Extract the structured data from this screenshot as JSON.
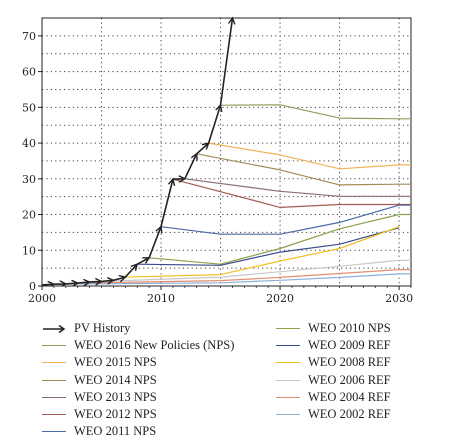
{
  "chart_data": {
    "type": "line",
    "title": "",
    "xlabel": "",
    "ylabel": "",
    "xlim": [
      2000,
      2031
    ],
    "ylim": [
      0,
      75
    ],
    "x_ticks": [
      "2000",
      "2010",
      "2020",
      "2030"
    ],
    "y_ticks": [
      "0",
      "10",
      "20",
      "30",
      "40",
      "50",
      "60",
      "70"
    ],
    "grid": "dotted",
    "legend_columns": 2,
    "series": [
      {
        "name": "PV History",
        "color": "#222222",
        "marker": "arrow",
        "points": [
          [
            2000,
            0.3
          ],
          [
            2001,
            0.5
          ],
          [
            2002,
            0.6
          ],
          [
            2003,
            0.8
          ],
          [
            2004,
            1.1
          ],
          [
            2005,
            1.3
          ],
          [
            2006,
            1.6
          ],
          [
            2007,
            2.5
          ],
          [
            2008,
            6.1
          ],
          [
            2009,
            7.9
          ],
          [
            2010,
            16.6
          ],
          [
            2011,
            29.9
          ],
          [
            2012,
            30.0
          ],
          [
            2013,
            37.0
          ],
          [
            2014,
            40.0
          ],
          [
            2015,
            50.6
          ],
          [
            2016,
            75.0
          ]
        ]
      },
      {
        "name": "WEO 2016 New Policies (NPS)",
        "color": "#9a9a5c",
        "points": [
          [
            2015,
            50.6
          ],
          [
            2020,
            50.7
          ],
          [
            2025,
            47.0
          ],
          [
            2030,
            46.8
          ],
          [
            2031,
            46.8
          ]
        ]
      },
      {
        "name": "WEO 2015 NPS",
        "color": "#f2b25a",
        "points": [
          [
            2014,
            40.0
          ],
          [
            2020,
            36.7
          ],
          [
            2025,
            32.8
          ],
          [
            2030,
            33.9
          ],
          [
            2031,
            33.9
          ]
        ]
      },
      {
        "name": "WEO 2014 NPS",
        "color": "#a68a5a",
        "points": [
          [
            2013,
            37.0
          ],
          [
            2020,
            32.5
          ],
          [
            2025,
            28.3
          ],
          [
            2030,
            28.5
          ],
          [
            2031,
            28.5
          ]
        ]
      },
      {
        "name": "WEO 2013 NPS",
        "color": "#8a7070",
        "points": [
          [
            2012,
            30.0
          ],
          [
            2020,
            26.5
          ],
          [
            2025,
            25.1
          ],
          [
            2030,
            25.1
          ],
          [
            2031,
            25.1
          ]
        ]
      },
      {
        "name": "WEO 2012 NPS",
        "color": "#a35c50",
        "points": [
          [
            2011,
            29.9
          ],
          [
            2020,
            22.0
          ],
          [
            2025,
            22.8
          ],
          [
            2030,
            22.8
          ],
          [
            2031,
            22.8
          ]
        ]
      },
      {
        "name": "WEO 2011 NPS",
        "color": "#4a6aa8",
        "points": [
          [
            2010,
            16.6
          ],
          [
            2015,
            14.5
          ],
          [
            2020,
            14.5
          ],
          [
            2025,
            17.8
          ],
          [
            2030,
            22.6
          ],
          [
            2031,
            22.6
          ]
        ]
      },
      {
        "name": "WEO 2010 NPS",
        "color": "#8aa04a",
        "points": [
          [
            2009,
            7.9
          ],
          [
            2015,
            6.1
          ],
          [
            2020,
            10.5
          ],
          [
            2025,
            16.0
          ],
          [
            2030,
            20.0
          ],
          [
            2031,
            20.0
          ]
        ]
      },
      {
        "name": "WEO 2009 REF",
        "color": "#3a4a8c",
        "points": [
          [
            2008,
            6.1
          ],
          [
            2015,
            5.8
          ],
          [
            2020,
            9.5
          ],
          [
            2025,
            11.7
          ],
          [
            2030,
            16.3
          ]
        ]
      },
      {
        "name": "WEO 2008 REF",
        "color": "#f0c020",
        "points": [
          [
            2007,
            2.5
          ],
          [
            2015,
            3.2
          ],
          [
            2020,
            7.0
          ],
          [
            2025,
            10.5
          ],
          [
            2030,
            16.6
          ]
        ]
      },
      {
        "name": "WEO 2006 REF",
        "color": "#c8c8c8",
        "points": [
          [
            2005,
            1.3
          ],
          [
            2015,
            2.5
          ],
          [
            2020,
            4.0
          ],
          [
            2025,
            5.5
          ],
          [
            2030,
            7.2
          ],
          [
            2031,
            7.2
          ]
        ]
      },
      {
        "name": "WEO 2004 REF",
        "color": "#e09070",
        "points": [
          [
            2003,
            0.8
          ],
          [
            2015,
            1.5
          ],
          [
            2020,
            2.4
          ],
          [
            2025,
            3.5
          ],
          [
            2030,
            4.6
          ],
          [
            2031,
            4.6
          ]
        ]
      },
      {
        "name": "WEO 2002 REF",
        "color": "#8ab0d8",
        "points": [
          [
            2001,
            0.5
          ],
          [
            2015,
            0.9
          ],
          [
            2020,
            1.6
          ],
          [
            2025,
            2.4
          ],
          [
            2030,
            3.4
          ],
          [
            2031,
            3.4
          ]
        ]
      }
    ]
  }
}
